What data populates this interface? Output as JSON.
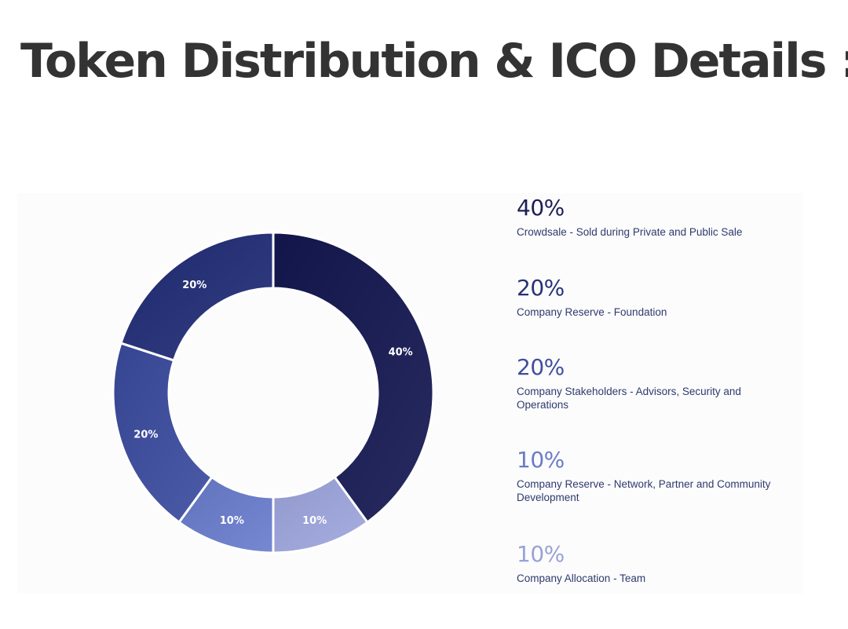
{
  "title": "Token Distribution & ICO Details :",
  "chart_data": {
    "type": "pie",
    "donut": true,
    "title": "Token Distribution & ICO Details :",
    "slices": [
      {
        "value": 40,
        "label": "40%",
        "description": "Crowdsale - Sold during Private and Public Sale",
        "color": "#1c1f54"
      },
      {
        "value": 10,
        "label": "10%",
        "description": "Company Allocation - Team",
        "color": "#9aa2d6"
      },
      {
        "value": 10,
        "label": "10%",
        "description": "Company Reserve - Network, Partner and Community Development",
        "color": "#6a7cc6"
      },
      {
        "value": 20,
        "label": "20%",
        "description": "Company Stakeholders - Advisors, Security and Operations",
        "color": "#404f9c"
      },
      {
        "value": 20,
        "label": "20%",
        "description": "Company Reserve - Foundation",
        "color": "#283276"
      }
    ],
    "legend": [
      {
        "label": "40%",
        "description": "Crowdsale - Sold during Private and Public Sale",
        "color": "#1c1f54"
      },
      {
        "label": "20%",
        "description": "Company Reserve - Foundation",
        "color": "#283276"
      },
      {
        "label": "20%",
        "description": "Company Stakeholders - Advisors, Security and Operations",
        "color": "#404f9c"
      },
      {
        "label": "10%",
        "description": "Company Reserve - Network, Partner and Community Development",
        "color": "#6a7cc6"
      },
      {
        "label": "10%",
        "description": "Company Allocation - Team",
        "color": "#9aa2d6"
      }
    ],
    "legend_placement": "right"
  }
}
